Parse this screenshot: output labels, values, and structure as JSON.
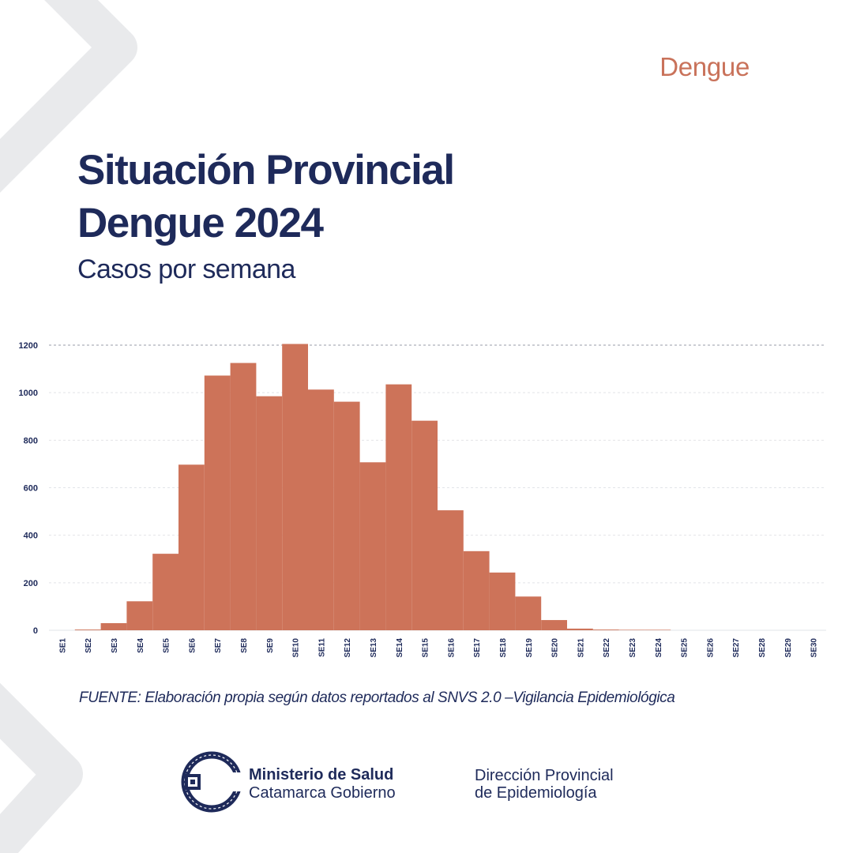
{
  "header": {
    "tag": "Dengue"
  },
  "title": {
    "line1": "Situación Provincial",
    "line2": "Dengue 2024",
    "subtitle": "Casos por semana"
  },
  "chart_data": {
    "type": "bar",
    "title": "Situación Provincial Dengue 2024",
    "subtitle": "Casos por semana",
    "xlabel": "",
    "ylabel": "",
    "ylim": [
      0,
      1200
    ],
    "yticks": [
      0,
      200,
      400,
      600,
      800,
      1000,
      1200
    ],
    "grid": true,
    "bar_color": "#cd7359",
    "categories": [
      "SE1",
      "SE2",
      "SE3",
      "SE4",
      "SE5",
      "SE6",
      "SE7",
      "SE8",
      "SE9",
      "SE10",
      "SE11",
      "SE12",
      "SE13",
      "SE14",
      "SE15",
      "SE16",
      "SE17",
      "SE18",
      "SE19",
      "SE20",
      "SE21",
      "SE22",
      "SE23",
      "SE24",
      "SE25",
      "SE26",
      "SE27",
      "SE28",
      "SE29",
      "SE30"
    ],
    "values": [
      0,
      3,
      30,
      122,
      322,
      697,
      1072,
      1125,
      985,
      1205,
      1013,
      962,
      707,
      1035,
      882,
      505,
      333,
      243,
      142,
      43,
      7,
      3,
      2,
      2,
      0,
      0,
      0,
      0,
      0,
      0
    ]
  },
  "footer": {
    "source": "FUENTE: Elaboración propia según datos reportados al SNVS 2.0 –Vigilancia Epidemiológica",
    "org_line1": "Ministerio de Salud",
    "org_line2": "Catamarca Gobierno",
    "dir_line1": "Dirección Provincial",
    "dir_line2": "de Epidemiología"
  },
  "colors": {
    "navy": "#1e2a5a",
    "accent": "#c9725a",
    "bar": "#cd7359",
    "deco": "#e9eaec"
  }
}
